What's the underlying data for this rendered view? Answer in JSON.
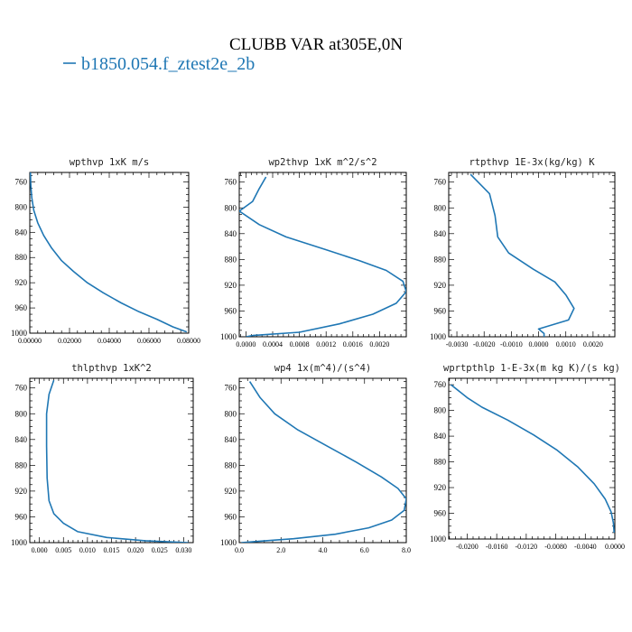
{
  "figure": {
    "title": "CLUBB VAR at305E,0N",
    "legend_label": "b1850.054.f_ztest2e_2b",
    "series_color": "#1f77b4"
  },
  "chart_data": [
    {
      "type": "line",
      "title": "wpthvp  1xK m/s",
      "xlim": [
        0,
        0.08
      ],
      "xticks": [
        "0.00000",
        "0.02000",
        "0.04000",
        "0.06000",
        "0.08000"
      ],
      "xtick_values": [
        0,
        0.02,
        0.04,
        0.06,
        0.08
      ],
      "ylim": [
        1000,
        745
      ],
      "yticks": [
        "760",
        "800",
        "840",
        "880",
        "920",
        "960",
        "1000"
      ],
      "ytick_values": [
        760,
        800,
        840,
        880,
        920,
        960,
        1000
      ],
      "series": [
        {
          "x": [
            0.0003,
            0.0005,
            0.001,
            0.002,
            0.004,
            0.007,
            0.011,
            0.016,
            0.022,
            0.029,
            0.037,
            0.046,
            0.055,
            0.064,
            0.072,
            0.079
          ],
          "y": [
            745,
            765,
            785,
            805,
            825,
            845,
            865,
            885,
            902,
            920,
            936,
            952,
            966,
            978,
            990,
            998
          ]
        }
      ]
    },
    {
      "type": "line",
      "title": "wp2thvp  1xK m^2/s^2",
      "xlim": [
        -0.0001,
        0.0024
      ],
      "xticks": [
        "0.0000",
        "0.0004",
        "0.0008",
        "0.0012",
        "0.0016",
        "0.0020"
      ],
      "xtick_values": [
        0,
        0.0004,
        0.0008,
        0.0012,
        0.0016,
        0.002
      ],
      "ylim": [
        1000,
        745
      ],
      "yticks": [
        "760",
        "800",
        "840",
        "880",
        "920",
        "960",
        "1000"
      ],
      "ytick_values": [
        760,
        800,
        840,
        880,
        920,
        960,
        1000
      ],
      "series": [
        {
          "x": [
            0.0003,
            0.0002,
            0.0001,
            -0.0001,
            0.0002,
            0.0006,
            0.0012,
            0.0017,
            0.0021,
            0.00235,
            0.0024,
            0.00225,
            0.0019,
            0.0014,
            0.0008,
            0.0001,
            0.0
          ],
          "y": [
            752,
            770,
            790,
            805,
            826,
            845,
            865,
            882,
            897,
            914,
            930,
            948,
            965,
            980,
            993,
            998,
            1000
          ]
        }
      ]
    },
    {
      "type": "line",
      "title": "rtpthvp  1E-3x(kg/kg) K",
      "xlim": [
        -0.0033,
        0.0028
      ],
      "xticks": [
        "-0.0030",
        "-0.0020",
        "-0.0010",
        "0.0000",
        "0.0010",
        "0.0020"
      ],
      "xtick_values": [
        -0.003,
        -0.002,
        -0.001,
        0,
        0.001,
        0.002
      ],
      "ylim": [
        1000,
        745
      ],
      "yticks": [
        "760",
        "800",
        "840",
        "880",
        "920",
        "960",
        "1000"
      ],
      "ytick_values": [
        760,
        800,
        840,
        880,
        920,
        960,
        1000
      ],
      "series": [
        {
          "x": [
            -0.0025,
            -0.0018,
            -0.0016,
            -0.0015,
            -0.0011,
            -0.0002,
            0.0006,
            0.001,
            0.0013,
            0.0011,
            0.0,
            0.0002,
            0.0002
          ],
          "y": [
            748,
            778,
            812,
            845,
            870,
            895,
            915,
            935,
            956,
            974,
            988,
            995,
            1000
          ]
        }
      ]
    },
    {
      "type": "line",
      "title": "thlpthvp  1xK^2",
      "xlim": [
        -0.002,
        0.032
      ],
      "xticks": [
        "0.000",
        "0.005",
        "0.010",
        "0.015",
        "0.020",
        "0.025",
        "0.030"
      ],
      "xtick_values": [
        0,
        0.005,
        0.01,
        0.015,
        0.02,
        0.025,
        0.03
      ],
      "ylim": [
        1000,
        745
      ],
      "yticks": [
        "760",
        "800",
        "840",
        "880",
        "920",
        "960",
        "1000"
      ],
      "ytick_values": [
        760,
        800,
        840,
        880,
        920,
        960,
        1000
      ],
      "series": [
        {
          "x": [
            0.003,
            0.002,
            0.0015,
            0.0015,
            0.0016,
            0.002,
            0.003,
            0.005,
            0.008,
            0.014,
            0.022,
            0.031
          ],
          "y": [
            748,
            770,
            800,
            850,
            900,
            935,
            955,
            970,
            983,
            992,
            997,
            1000
          ]
        }
      ]
    },
    {
      "type": "line",
      "title": "wp4  1x(m^4)/(s^4)",
      "xlim": [
        0,
        8
      ],
      "xticks": [
        "0.0",
        "2.0",
        "4.0",
        "6.0",
        "8.0"
      ],
      "xtick_values": [
        0,
        2,
        4,
        6,
        8
      ],
      "ylim": [
        1000,
        745
      ],
      "yticks": [
        "760",
        "800",
        "840",
        "880",
        "920",
        "960",
        "1000"
      ],
      "ytick_values": [
        760,
        800,
        840,
        880,
        920,
        960,
        1000
      ],
      "series": [
        {
          "x": [
            0.5,
            1.0,
            1.7,
            2.8,
            4.2,
            5.6,
            6.8,
            7.6,
            8.0,
            7.9,
            7.3,
            6.2,
            4.6,
            2.6,
            0.9,
            0.1
          ],
          "y": [
            750,
            775,
            800,
            825,
            850,
            875,
            898,
            916,
            932,
            950,
            965,
            977,
            987,
            994,
            998,
            1000
          ]
        }
      ]
    },
    {
      "type": "line",
      "title": "wprtpthlp  1-E-3x(m kg K)/(s kg)",
      "xlim": [
        -0.0225,
        0.0
      ],
      "xticks": [
        "-0.0200",
        "-0.0160",
        "-0.0120",
        "-0.0080",
        "-0.0040",
        "0.0000"
      ],
      "xtick_values": [
        -0.02,
        -0.016,
        -0.012,
        -0.008,
        -0.004,
        0
      ],
      "ylim": [
        1000,
        750
      ],
      "yticks": [
        "760",
        "800",
        "840",
        "880",
        "920",
        "960",
        "1000"
      ],
      "ytick_values": [
        760,
        800,
        840,
        880,
        920,
        960,
        1000
      ],
      "series": [
        {
          "x": [
            -0.0222,
            -0.02,
            -0.018,
            -0.0145,
            -0.011,
            -0.0078,
            -0.005,
            -0.0028,
            -0.0013,
            -0.0005,
            -0.0002,
            -0.0001
          ],
          "y": [
            760,
            780,
            795,
            815,
            838,
            862,
            888,
            914,
            938,
            958,
            975,
            990
          ]
        }
      ]
    }
  ]
}
